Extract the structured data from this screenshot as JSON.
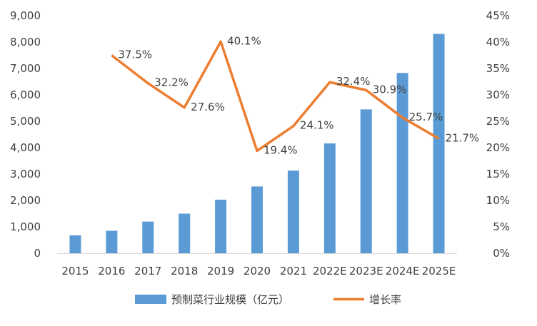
{
  "chart_data": {
    "type": "bar",
    "categories": [
      "2015",
      "2016",
      "2017",
      "2018",
      "2019",
      "2020",
      "2021",
      "2022E",
      "2023E",
      "2024E",
      "2025E"
    ],
    "series": [
      {
        "name": "预制菜行业规模（亿元）",
        "type": "bar",
        "axis": "left",
        "color": "#5B9BD5",
        "values": [
          680,
          850,
          1200,
          1500,
          2030,
          2530,
          3130,
          4160,
          5450,
          6830,
          8310
        ]
      },
      {
        "name": "增长率",
        "type": "line",
        "axis": "right",
        "color": "#ED7D31",
        "values": [
          null,
          37.5,
          32.2,
          27.6,
          40.1,
          19.4,
          24.1,
          32.4,
          30.9,
          25.7,
          21.7
        ],
        "data_labels": [
          "",
          "37.5%",
          "32.2%",
          "27.6%",
          "40.1%",
          "19.4%",
          "24.1%",
          "32.4%",
          "30.9%",
          "25.7%",
          "21.7%"
        ]
      }
    ],
    "y_left": {
      "lim": [
        0,
        9000
      ],
      "ticks": [
        0,
        1000,
        2000,
        3000,
        4000,
        5000,
        6000,
        7000,
        8000,
        9000
      ],
      "tick_labels": [
        "0",
        "1,000",
        "2,000",
        "3,000",
        "4,000",
        "5,000",
        "6,000",
        "7,000",
        "8,000",
        "9,000"
      ]
    },
    "y_right": {
      "lim": [
        0,
        45
      ],
      "ticks": [
        0,
        5,
        10,
        15,
        20,
        25,
        30,
        35,
        40,
        45
      ],
      "tick_labels": [
        "0%",
        "5%",
        "10%",
        "15%",
        "20%",
        "25%",
        "30%",
        "35%",
        "40%",
        "45%"
      ]
    },
    "title": "",
    "xlabel": "",
    "ylabel": "",
    "grid": false,
    "legend_position": "bottom"
  }
}
